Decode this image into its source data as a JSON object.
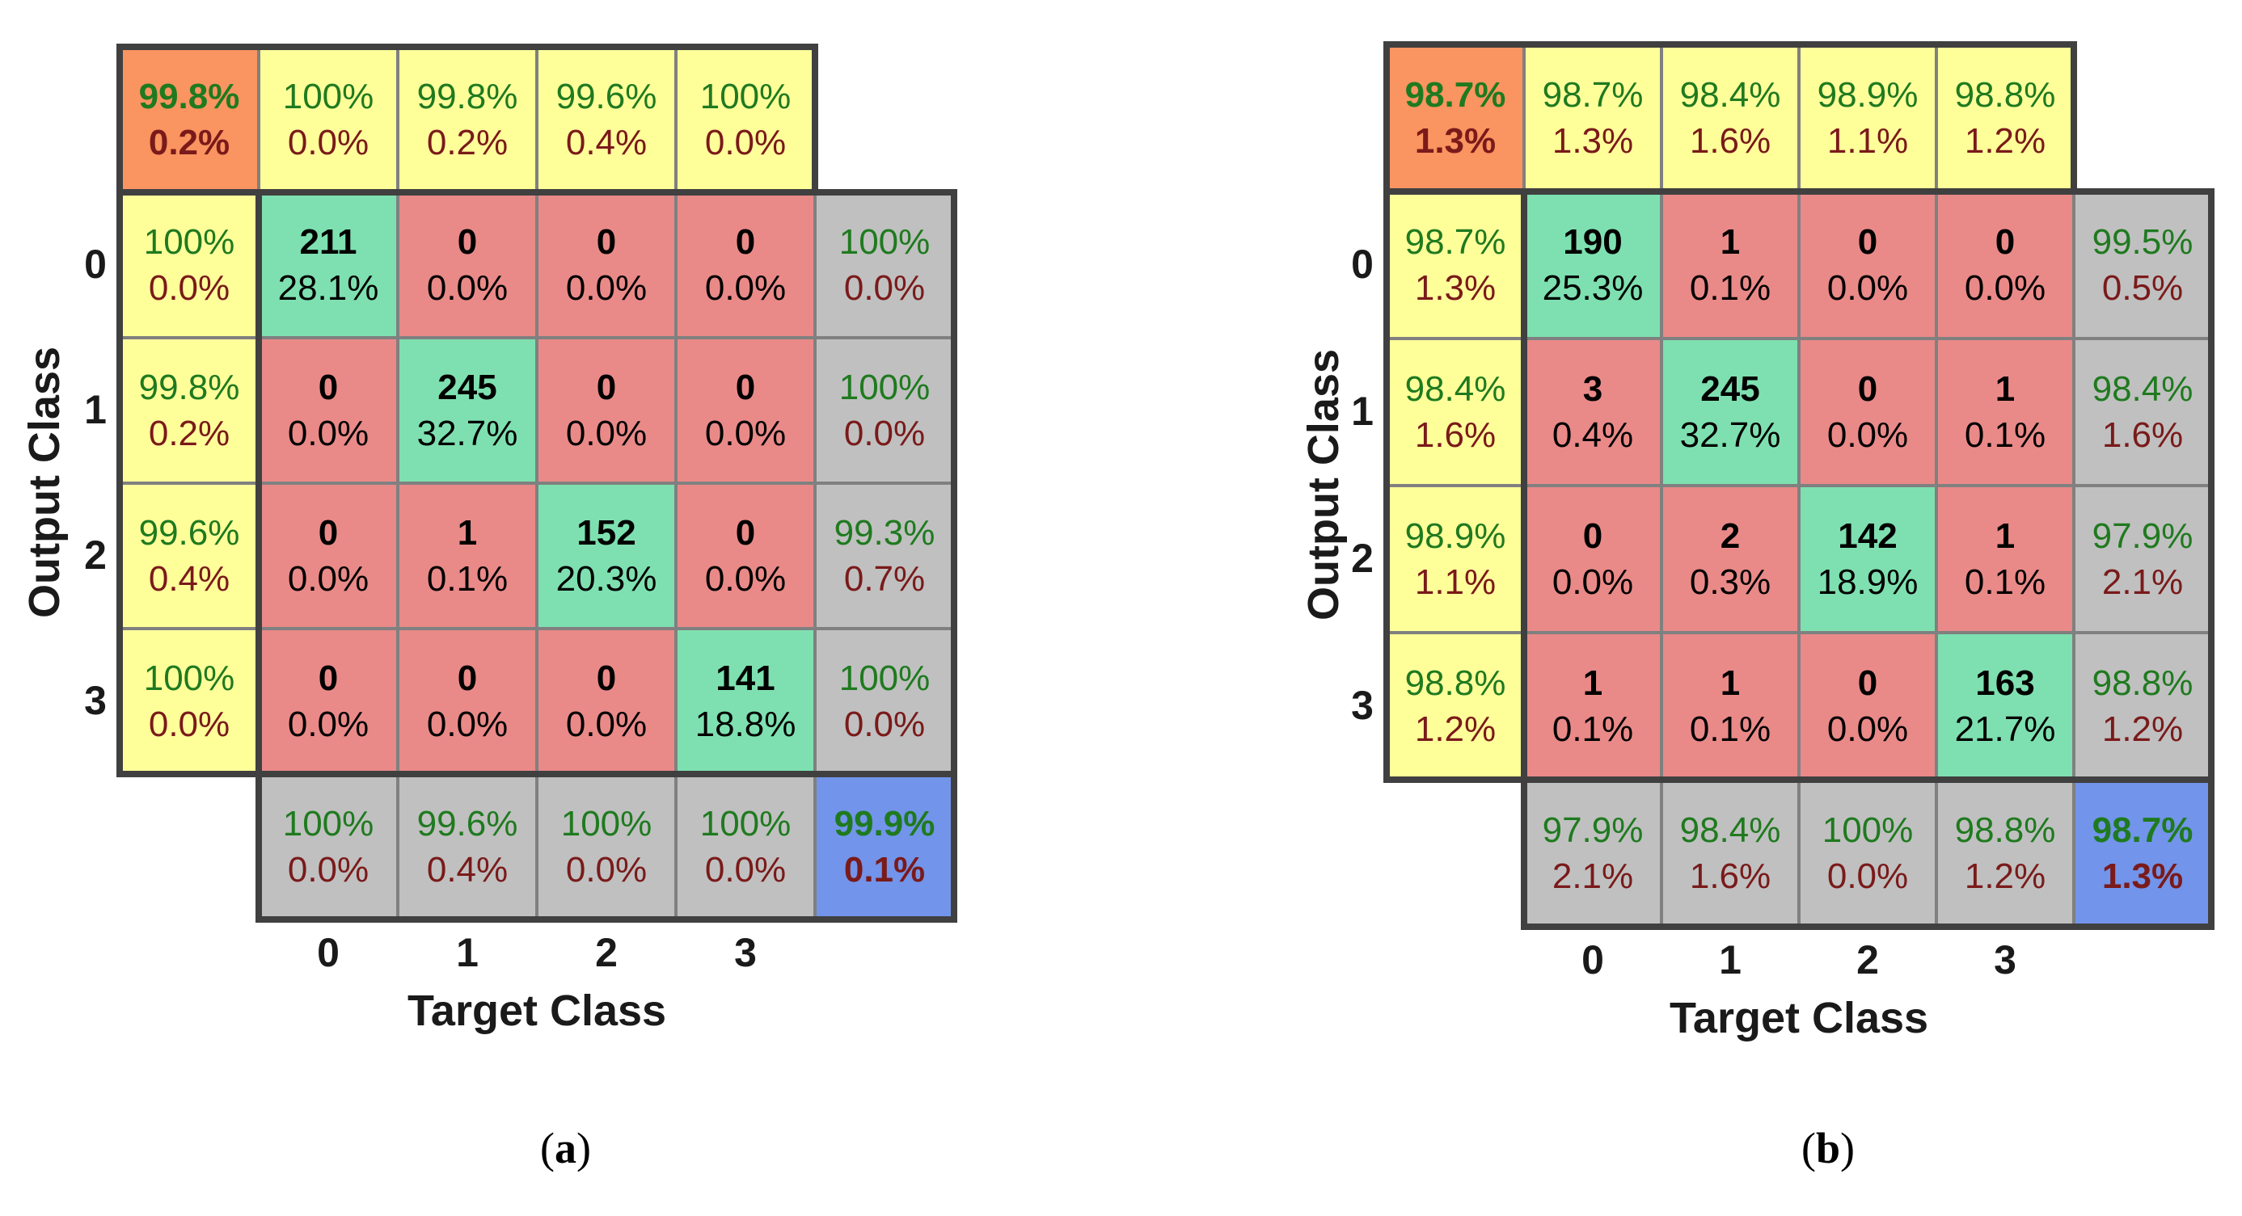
{
  "colors": {
    "diag": "#7ee0b0",
    "offdiag": "#e98a88",
    "yellow": "#ffff9a",
    "gray": "#c0c0c0",
    "orange": "#fa9460",
    "blue": "#7294ea",
    "green_text": "#1f7a1f",
    "red_text": "#7a1a1a"
  },
  "chart_data": [
    {
      "type": "table",
      "title": "Confusion matrix (a)",
      "caption_letter": "a",
      "xlabel": "Target Class",
      "ylabel": "Output Class",
      "classes": [
        "0",
        "1",
        "2",
        "3"
      ],
      "matrix_counts": [
        [
          211,
          0,
          0,
          0
        ],
        [
          0,
          245,
          0,
          0
        ],
        [
          0,
          1,
          152,
          0
        ],
        [
          0,
          0,
          0,
          141
        ]
      ],
      "matrix_percents": [
        [
          "28.1%",
          "0.0%",
          "0.0%",
          "0.0%"
        ],
        [
          "0.0%",
          "32.7%",
          "0.0%",
          "0.0%"
        ],
        [
          "0.0%",
          "0.1%",
          "20.3%",
          "0.0%"
        ],
        [
          "0.0%",
          "0.0%",
          "0.0%",
          "18.8%"
        ]
      ],
      "left_summary": [
        [
          "100%",
          "0.0%"
        ],
        [
          "99.8%",
          "0.2%"
        ],
        [
          "99.6%",
          "0.4%"
        ],
        [
          "100%",
          "0.0%"
        ]
      ],
      "top_summary": [
        [
          "100%",
          "0.0%"
        ],
        [
          "99.8%",
          "0.2%"
        ],
        [
          "99.6%",
          "0.4%"
        ],
        [
          "100%",
          "0.0%"
        ]
      ],
      "top_corner": [
        "99.8%",
        "0.2%"
      ],
      "right_summary": [
        [
          "100%",
          "0.0%"
        ],
        [
          "100%",
          "0.0%"
        ],
        [
          "99.3%",
          "0.7%"
        ],
        [
          "100%",
          "0.0%"
        ]
      ],
      "bottom_summary": [
        [
          "100%",
          "0.0%"
        ],
        [
          "99.6%",
          "0.4%"
        ],
        [
          "100%",
          "0.0%"
        ],
        [
          "100%",
          "0.0%"
        ]
      ],
      "overall": [
        "99.9%",
        "0.1%"
      ]
    },
    {
      "type": "table",
      "title": "Confusion matrix (b)",
      "caption_letter": "b",
      "xlabel": "Target Class",
      "ylabel": "Output Class",
      "classes": [
        "0",
        "1",
        "2",
        "3"
      ],
      "matrix_counts": [
        [
          190,
          1,
          0,
          0
        ],
        [
          3,
          245,
          0,
          1
        ],
        [
          0,
          2,
          142,
          1
        ],
        [
          1,
          1,
          0,
          163
        ]
      ],
      "matrix_percents": [
        [
          "25.3%",
          "0.1%",
          "0.0%",
          "0.0%"
        ],
        [
          "0.4%",
          "32.7%",
          "0.0%",
          "0.1%"
        ],
        [
          "0.0%",
          "0.3%",
          "18.9%",
          "0.1%"
        ],
        [
          "0.1%",
          "0.1%",
          "0.0%",
          "21.7%"
        ]
      ],
      "left_summary": [
        [
          "98.7%",
          "1.3%"
        ],
        [
          "98.4%",
          "1.6%"
        ],
        [
          "98.9%",
          "1.1%"
        ],
        [
          "98.8%",
          "1.2%"
        ]
      ],
      "top_summary": [
        [
          "98.7%",
          "1.3%"
        ],
        [
          "98.4%",
          "1.6%"
        ],
        [
          "98.9%",
          "1.1%"
        ],
        [
          "98.8%",
          "1.2%"
        ]
      ],
      "top_corner": [
        "98.7%",
        "1.3%"
      ],
      "right_summary": [
        [
          "99.5%",
          "0.5%"
        ],
        [
          "98.4%",
          "1.6%"
        ],
        [
          "97.9%",
          "2.1%"
        ],
        [
          "98.8%",
          "1.2%"
        ]
      ],
      "bottom_summary": [
        [
          "97.9%",
          "2.1%"
        ],
        [
          "98.4%",
          "1.6%"
        ],
        [
          "100%",
          "0.0%"
        ],
        [
          "98.8%",
          "1.2%"
        ]
      ],
      "overall": [
        "98.7%",
        "1.3%"
      ]
    }
  ]
}
